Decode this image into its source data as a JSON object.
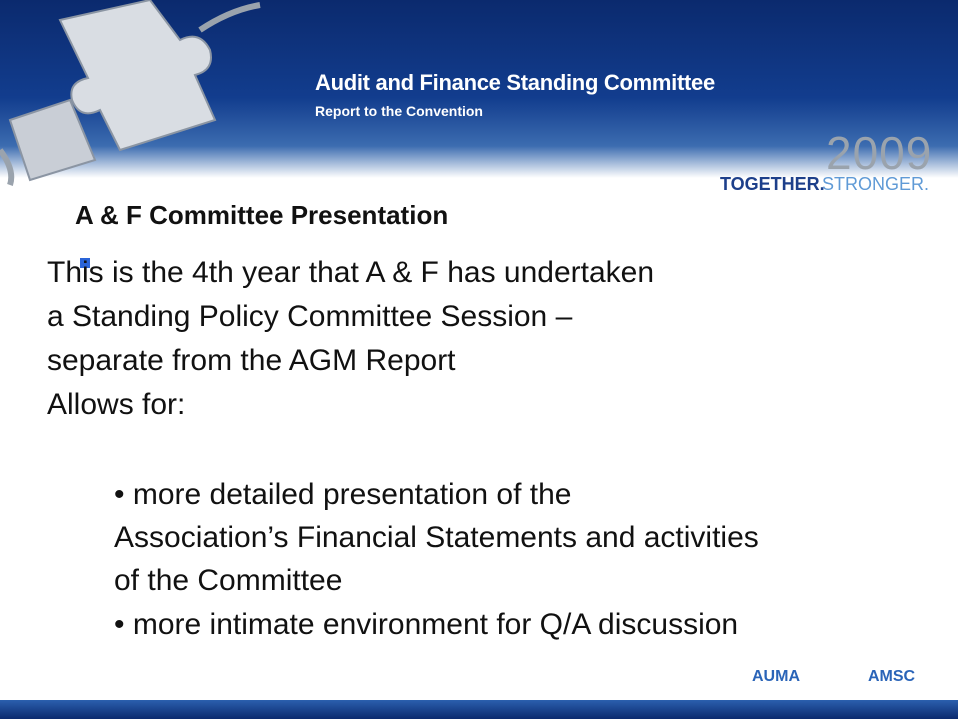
{
  "header": {
    "title": "Audit and Finance Standing Committee",
    "subtitle": "Report  to the Convention",
    "year": "2009",
    "tagline_a": "TOGETHER.",
    "tagline_b": "STRONGER."
  },
  "slide": {
    "heading": "A & F Committee Presentation",
    "lines": [
      "This is the 4th year that A & F has undertaken",
      "a Standing Policy Committee Session –",
      "separate from the AGM Report",
      "Allows for:"
    ],
    "sub_lines": [
      "• more detailed presentation of the",
      "Association’s Financial Statements and activities",
      "of the Committee",
      "• more intimate environment for Q/A discussion"
    ]
  },
  "footer": {
    "logo_a": "AUMA",
    "logo_b": "AMSC"
  }
}
